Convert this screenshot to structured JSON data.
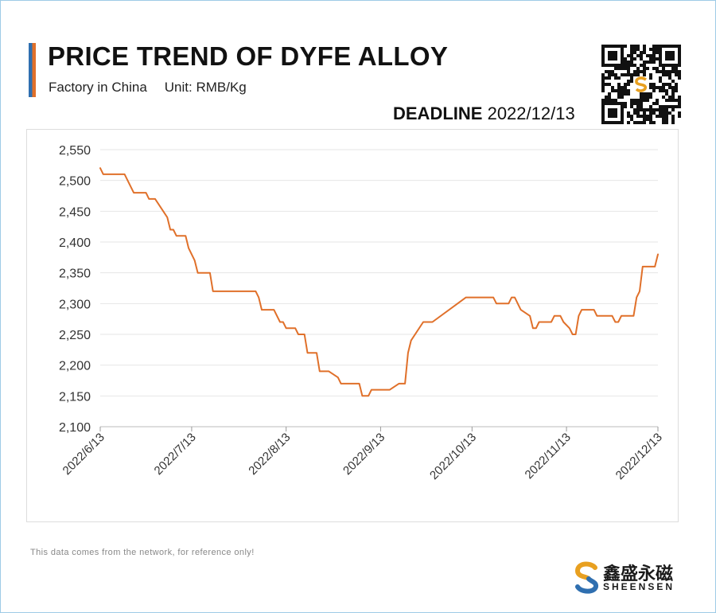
{
  "header": {
    "title": "PRICE TREND OF DYFE ALLOY",
    "subtitle_factory": "Factory in China",
    "subtitle_unit": "Unit: RMB/Kg",
    "deadline_label": "DEADLINE",
    "deadline_date": "2022/12/13"
  },
  "footer": {
    "note": "This data comes from the network, for reference only!",
    "brand_cn": "鑫盛永磁",
    "brand_en": "SHEENSEN"
  },
  "colors": {
    "line": "#e0702a",
    "accent_blue": "#2f6fb0",
    "grid": "#e6e6e6"
  },
  "chart_data": {
    "type": "line",
    "title": "",
    "xlabel": "",
    "ylabel": "",
    "ylim": [
      2100,
      2550
    ],
    "yticks": [
      2100,
      2150,
      2200,
      2250,
      2300,
      2350,
      2400,
      2450,
      2500,
      2550
    ],
    "ytick_labels": [
      "2,100",
      "2,150",
      "2,200",
      "2,250",
      "2,300",
      "2,350",
      "2,400",
      "2,450",
      "2,500",
      "2,550"
    ],
    "xlim": [
      "2022-06-13",
      "2022-12-13"
    ],
    "xticks": [
      "2022-06-13",
      "2022-07-13",
      "2022-08-13",
      "2022-09-13",
      "2022-10-13",
      "2022-11-13",
      "2022-12-13"
    ],
    "xtick_labels": [
      "2022/6/13",
      "2022/7/13",
      "2022/8/13",
      "2022/9/13",
      "2022/10/13",
      "2022/11/13",
      "2022/12/13"
    ],
    "grid": "horizontal",
    "legend": "none",
    "series": [
      {
        "points": [
          [
            "2022-06-13",
            2520
          ],
          [
            "2022-06-14",
            2510
          ],
          [
            "2022-06-21",
            2510
          ],
          [
            "2022-06-24",
            2480
          ],
          [
            "2022-06-28",
            2480
          ],
          [
            "2022-06-29",
            2470
          ],
          [
            "2022-07-01",
            2470
          ],
          [
            "2022-07-05",
            2440
          ],
          [
            "2022-07-06",
            2420
          ],
          [
            "2022-07-07",
            2420
          ],
          [
            "2022-07-08",
            2410
          ],
          [
            "2022-07-11",
            2410
          ],
          [
            "2022-07-12",
            2390
          ],
          [
            "2022-07-14",
            2370
          ],
          [
            "2022-07-15",
            2350
          ],
          [
            "2022-07-19",
            2350
          ],
          [
            "2022-07-20",
            2320
          ],
          [
            "2022-08-03",
            2320
          ],
          [
            "2022-08-04",
            2310
          ],
          [
            "2022-08-05",
            2290
          ],
          [
            "2022-08-09",
            2290
          ],
          [
            "2022-08-11",
            2270
          ],
          [
            "2022-08-12",
            2270
          ],
          [
            "2022-08-13",
            2260
          ],
          [
            "2022-08-16",
            2260
          ],
          [
            "2022-08-17",
            2250
          ],
          [
            "2022-08-19",
            2250
          ],
          [
            "2022-08-20",
            2220
          ],
          [
            "2022-08-23",
            2220
          ],
          [
            "2022-08-24",
            2190
          ],
          [
            "2022-08-27",
            2190
          ],
          [
            "2022-08-30",
            2180
          ],
          [
            "2022-08-31",
            2170
          ],
          [
            "2022-09-06",
            2170
          ],
          [
            "2022-09-07",
            2150
          ],
          [
            "2022-09-09",
            2150
          ],
          [
            "2022-09-10",
            2160
          ],
          [
            "2022-09-16",
            2160
          ],
          [
            "2022-09-19",
            2170
          ],
          [
            "2022-09-21",
            2170
          ],
          [
            "2022-09-22",
            2220
          ],
          [
            "2022-09-23",
            2240
          ],
          [
            "2022-09-27",
            2270
          ],
          [
            "2022-09-30",
            2270
          ],
          [
            "2022-10-11",
            2310
          ],
          [
            "2022-10-20",
            2310
          ],
          [
            "2022-10-21",
            2300
          ],
          [
            "2022-10-25",
            2300
          ],
          [
            "2022-10-26",
            2310
          ],
          [
            "2022-10-27",
            2310
          ],
          [
            "2022-10-29",
            2290
          ],
          [
            "2022-11-01",
            2280
          ],
          [
            "2022-11-02",
            2260
          ],
          [
            "2022-11-03",
            2260
          ],
          [
            "2022-11-04",
            2270
          ],
          [
            "2022-11-08",
            2270
          ],
          [
            "2022-11-09",
            2280
          ],
          [
            "2022-11-11",
            2280
          ],
          [
            "2022-11-12",
            2270
          ],
          [
            "2022-11-14",
            2260
          ],
          [
            "2022-11-15",
            2250
          ],
          [
            "2022-11-16",
            2250
          ],
          [
            "2022-11-17",
            2280
          ],
          [
            "2022-11-18",
            2290
          ],
          [
            "2022-11-22",
            2290
          ],
          [
            "2022-11-23",
            2280
          ],
          [
            "2022-11-28",
            2280
          ],
          [
            "2022-11-29",
            2270
          ],
          [
            "2022-11-30",
            2270
          ],
          [
            "2022-12-01",
            2280
          ],
          [
            "2022-12-05",
            2280
          ],
          [
            "2022-12-06",
            2310
          ],
          [
            "2022-12-07",
            2320
          ],
          [
            "2022-12-08",
            2360
          ],
          [
            "2022-12-12",
            2360
          ],
          [
            "2022-12-13",
            2380
          ]
        ]
      }
    ]
  }
}
